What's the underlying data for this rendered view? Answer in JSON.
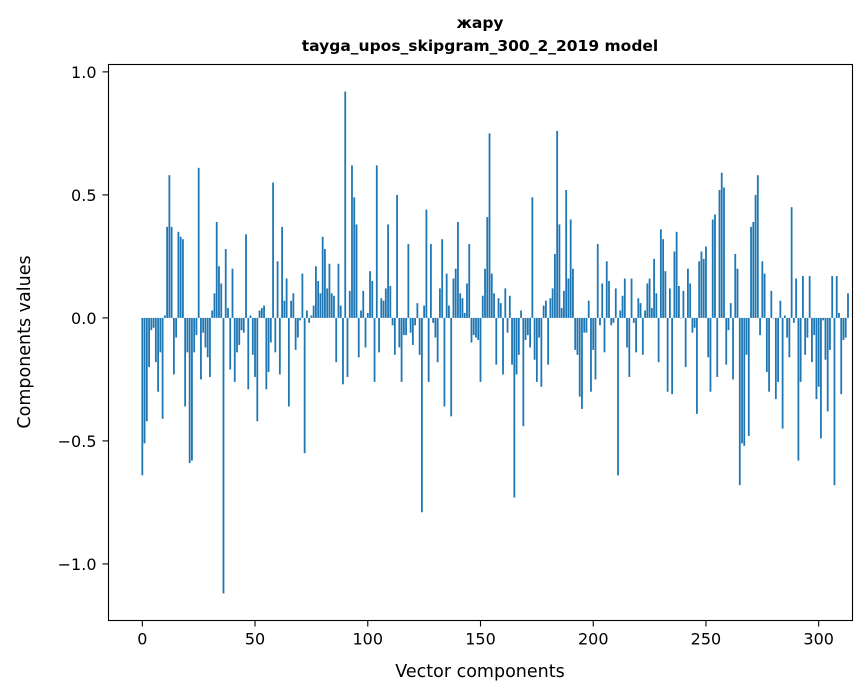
{
  "chart_data": {
    "type": "bar",
    "title_line1": "жару",
    "title_line2": "tayga_upos_skipgram_300_2_2019 model",
    "xlabel": "Vector components",
    "ylabel": "Components values",
    "xlim": [
      -15,
      315
    ],
    "ylim": [
      -1.23,
      1.03
    ],
    "xticks": [
      0,
      50,
      100,
      150,
      200,
      250,
      300
    ],
    "xtick_labels": [
      "0",
      "50",
      "100",
      "150",
      "200",
      "250",
      "300"
    ],
    "yticks": [
      -1.0,
      -0.5,
      0.0,
      0.5,
      1.0
    ],
    "ytick_labels": [
      "−1.0",
      "−0.5",
      "0.0",
      "0.5",
      "1.0"
    ],
    "bar_color": "#1f77b4",
    "values": [
      -0.64,
      -0.51,
      -0.42,
      -0.2,
      -0.05,
      -0.04,
      -0.18,
      -0.3,
      -0.14,
      -0.41,
      0.01,
      0.37,
      0.58,
      0.37,
      -0.23,
      -0.08,
      0.35,
      0.33,
      0.32,
      -0.36,
      -0.14,
      -0.59,
      -0.58,
      -0.14,
      -0.07,
      0.61,
      -0.25,
      -0.06,
      -0.12,
      -0.16,
      -0.24,
      0.03,
      0.1,
      0.39,
      0.21,
      0.14,
      -1.12,
      0.28,
      0.04,
      -0.21,
      0.2,
      -0.26,
      -0.14,
      -0.11,
      -0.05,
      -0.06,
      0.34,
      -0.29,
      0.01,
      -0.15,
      -0.24,
      -0.42,
      0.03,
      0.04,
      0.05,
      -0.29,
      -0.22,
      -0.1,
      0.55,
      -0.14,
      0.23,
      -0.23,
      0.37,
      0.07,
      0.16,
      -0.36,
      0.07,
      0.1,
      -0.13,
      -0.08,
      -0.01,
      0.18,
      -0.55,
      0.03,
      -0.02,
      0.01,
      0.05,
      0.21,
      0.15,
      0.1,
      0.33,
      0.28,
      0.12,
      0.22,
      0.1,
      0.09,
      -0.18,
      0.22,
      0.05,
      -0.27,
      0.92,
      -0.24,
      0.11,
      0.62,
      0.49,
      0.38,
      -0.16,
      0.03,
      0.11,
      -0.12,
      0.02,
      0.19,
      0.15,
      -0.26,
      0.62,
      -0.14,
      0.08,
      0.07,
      0.12,
      0.38,
      0.13,
      -0.03,
      -0.15,
      0.5,
      -0.12,
      -0.26,
      -0.07,
      -0.07,
      0.3,
      -0.06,
      -0.11,
      -0.03,
      0.06,
      -0.15,
      -0.79,
      0.05,
      0.44,
      -0.26,
      0.3,
      -0.02,
      -0.08,
      -0.18,
      0.12,
      0.32,
      -0.36,
      0.18,
      0.05,
      -0.4,
      0.16,
      0.2,
      0.39,
      0.1,
      0.08,
      0.02,
      0.14,
      0.3,
      -0.1,
      -0.07,
      -0.08,
      -0.09,
      -0.26,
      0.09,
      0.2,
      0.41,
      0.75,
      0.18,
      0.1,
      -0.19,
      0.08,
      0.06,
      -0.23,
      0.12,
      -0.06,
      0.09,
      -0.19,
      -0.73,
      -0.23,
      -0.15,
      0.03,
      -0.44,
      -0.09,
      -0.07,
      -0.12,
      0.49,
      -0.17,
      -0.26,
      -0.08,
      -0.28,
      0.05,
      0.07,
      -0.19,
      0.08,
      0.12,
      0.26,
      0.76,
      0.38,
      0.04,
      0.11,
      0.52,
      0.16,
      0.4,
      0.2,
      -0.13,
      -0.15,
      -0.32,
      -0.37,
      -0.06,
      -0.06,
      0.07,
      -0.3,
      -0.13,
      -0.25,
      0.3,
      -0.03,
      0.14,
      -0.14,
      0.23,
      0.15,
      -0.03,
      -0.02,
      0.12,
      -0.64,
      0.03,
      0.09,
      0.16,
      -0.12,
      -0.24,
      0.16,
      -0.02,
      -0.14,
      0.08,
      0.06,
      -0.15,
      0.03,
      0.14,
      0.16,
      0.04,
      0.24,
      0.1,
      -0.18,
      0.36,
      0.32,
      0.19,
      -0.3,
      0.12,
      -0.31,
      0.27,
      0.35,
      0.13,
      0.0,
      0.11,
      -0.2,
      0.2,
      0.14,
      -0.06,
      -0.04,
      -0.39,
      0.23,
      0.27,
      0.24,
      0.29,
      -0.16,
      -0.3,
      0.4,
      0.42,
      -0.24,
      0.52,
      0.59,
      0.53,
      -0.19,
      -0.05,
      0.06,
      -0.25,
      0.26,
      0.2,
      -0.68,
      -0.51,
      -0.52,
      -0.15,
      -0.48,
      0.37,
      0.39,
      0.5,
      0.58,
      -0.07,
      0.23,
      0.18,
      -0.22,
      -0.3,
      0.11,
      0.0,
      -0.33,
      -0.26,
      0.07,
      -0.45,
      0.01,
      -0.08,
      -0.16,
      0.45,
      -0.02,
      0.16,
      -0.58,
      -0.26,
      0.17,
      -0.15,
      -0.08,
      0.17,
      -0.18,
      -0.07,
      -0.33,
      -0.28,
      -0.49,
      -0.01,
      -0.17,
      -0.38,
      -0.13,
      0.17,
      -0.68,
      0.17,
      0.02,
      -0.31,
      -0.09,
      -0.08,
      0.1
    ]
  }
}
